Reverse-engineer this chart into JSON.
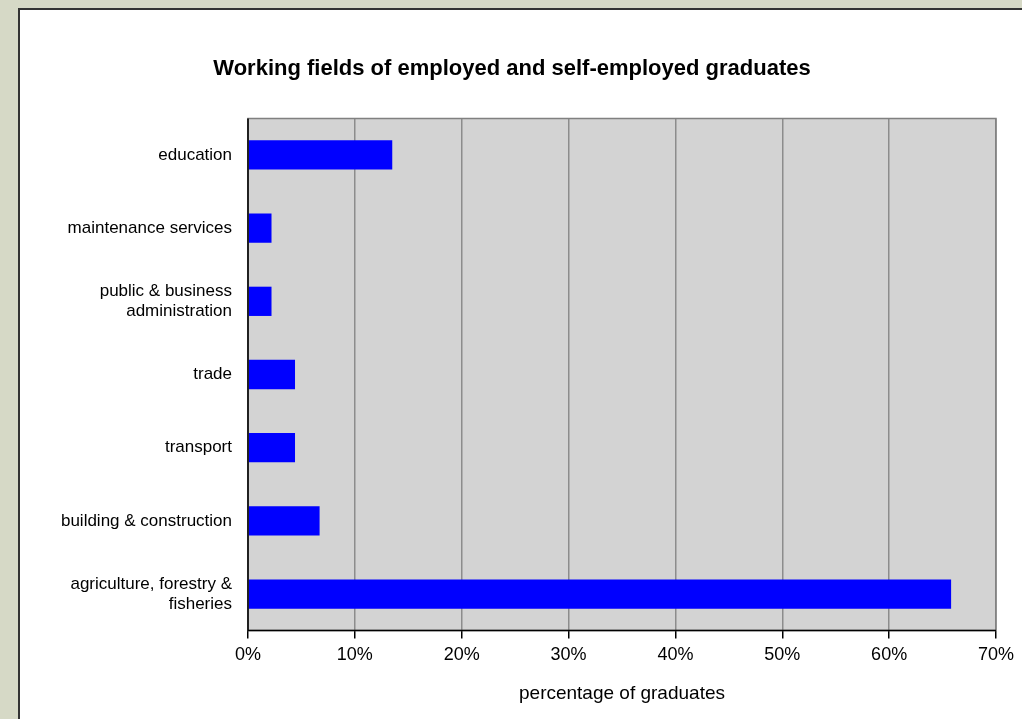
{
  "chart_data": {
    "type": "bar",
    "orientation": "horizontal",
    "title": "Working fields of employed and self-employed graduates",
    "xlabel": "percentage of graduates",
    "categories": [
      "education",
      "maintenance services",
      "public & business administration",
      "trade",
      "transport",
      "building & construction",
      "agriculture, forestry & fisheries"
    ],
    "values": [
      13.5,
      2.2,
      2.2,
      4.4,
      4.4,
      6.7,
      65.8
    ],
    "color": "#0000ff",
    "xlim": [
      0,
      70
    ],
    "xticks": [
      {
        "value": 0,
        "label": "0%"
      },
      {
        "value": 10,
        "label": "10%"
      },
      {
        "value": 20,
        "label": "20%"
      },
      {
        "value": 30,
        "label": "30%"
      },
      {
        "value": 40,
        "label": "40%"
      },
      {
        "value": 50,
        "label": "50%"
      },
      {
        "value": 60,
        "label": "60%"
      },
      {
        "value": 70,
        "label": "70%"
      }
    ],
    "grid": "x",
    "legend": false
  }
}
